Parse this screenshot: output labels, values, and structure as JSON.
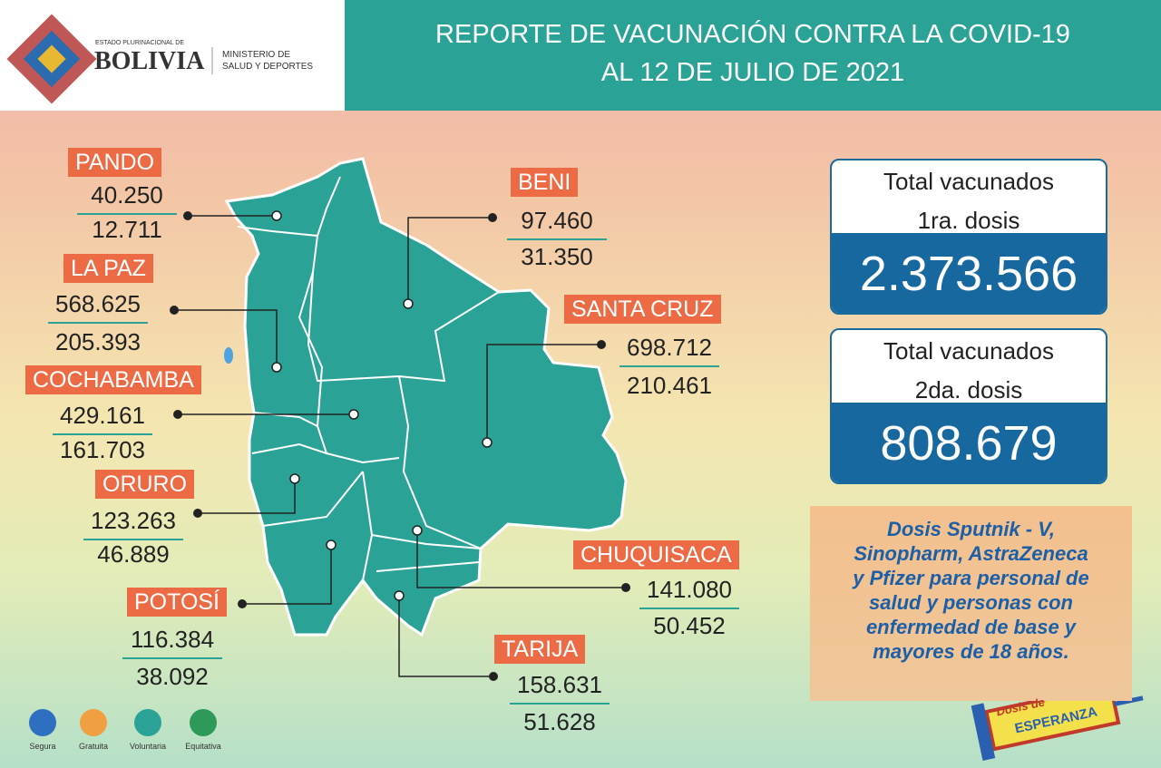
{
  "header": {
    "logo_small": "ESTADO PLURINACIONAL DE",
    "logo_big": "BOLIVIA",
    "ministry": [
      "MINISTERIO DE",
      "SALUD Y DEPORTES"
    ],
    "title": [
      "REPORTE DE VACUNACIÓN CONTRA LA COVID-19",
      "AL 12 DE JULIO DE 2021"
    ]
  },
  "departments": [
    {
      "name": "PANDO",
      "dose1": "40.250",
      "dose2": "12.711"
    },
    {
      "name": "LA PAZ",
      "dose1": "568.625",
      "dose2": "205.393"
    },
    {
      "name": "COCHABAMBA",
      "dose1": "429.161",
      "dose2": "161.703"
    },
    {
      "name": "ORURO",
      "dose1": "123.263",
      "dose2": "46.889"
    },
    {
      "name": "POTOSÍ",
      "dose1": "116.384",
      "dose2": "38.092"
    },
    {
      "name": "BENI",
      "dose1": "97.460",
      "dose2": "31.350"
    },
    {
      "name": "SANTA CRUZ",
      "dose1": "698.712",
      "dose2": "210.461"
    },
    {
      "name": "CHUQUISACA",
      "dose1": "141.080",
      "dose2": "50.452"
    },
    {
      "name": "TARIJA",
      "dose1": "158.631",
      "dose2": "51.628"
    }
  ],
  "totals": [
    {
      "label": [
        "Total vacunados",
        "1ra. dosis"
      ],
      "value": "2.373.566"
    },
    {
      "label": [
        "Total vacunados",
        "2da. dosis"
      ],
      "value": "808.679"
    }
  ],
  "note": [
    "Dosis Sputnik - V,",
    "Sinopharm, AstraZeneca",
    "y Pfizer para personal de",
    "salud y personas con",
    "enfermedad de base y",
    "mayores de 18 años."
  ],
  "badges": [
    "Segura",
    "Gratuita",
    "Voluntaria",
    "Equitativa"
  ],
  "campaign": [
    "Dosis de",
    "ESPERANZA"
  ]
}
